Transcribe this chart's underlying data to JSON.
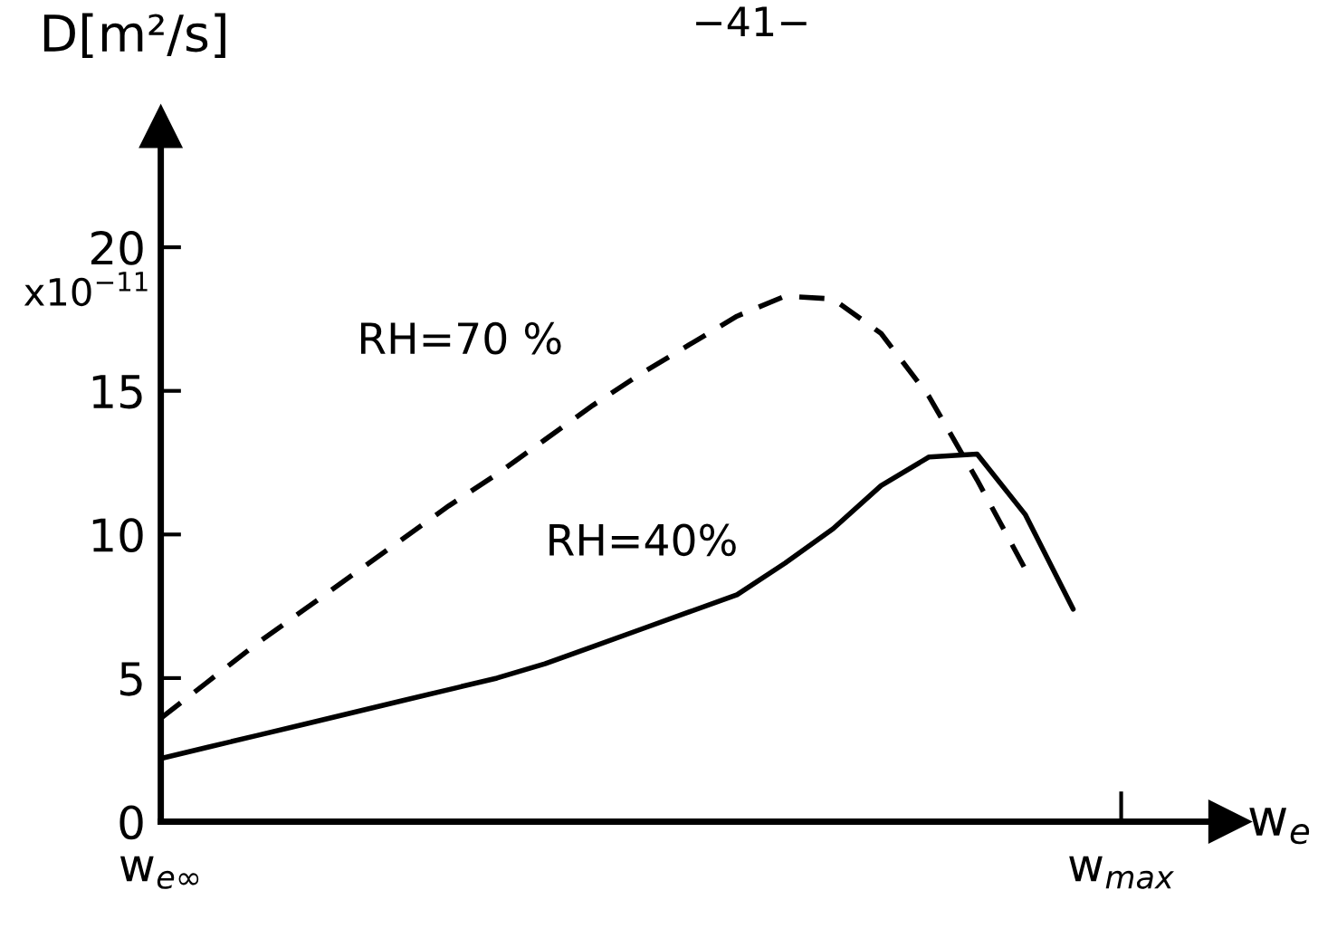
{
  "chart_data": {
    "type": "line",
    "ylabel": "D[m²/s]",
    "xlabel": "w$_{e}$",
    "annotations": [
      "−41−",
      "x10$^{−11}$"
    ],
    "categories": [
      "w$_{e∞}$",
      null,
      null,
      null,
      null,
      null,
      null,
      null,
      null,
      null,
      null,
      null,
      null,
      null,
      null,
      null,
      null,
      null,
      null,
      null,
      "w$_{max}$",
      null,
      null
    ],
    "ylim": [
      0,
      24.2
    ],
    "yticks": [
      0,
      5,
      10,
      15,
      20
    ],
    "grid": false,
    "legend": false,
    "marker": "none",
    "series": [
      {
        "name": "RH=70 %",
        "color": "#000000",
        "line_style": "dashed",
        "values": [
          3.6,
          4.9,
          6.2,
          7.4,
          8.6,
          9.8,
          11.0,
          12.1,
          13.3,
          14.5,
          15.6,
          16.6,
          17.6,
          18.3,
          18.2,
          17.0,
          14.8,
          11.9,
          8.8,
          null,
          null,
          null,
          null
        ]
      },
      {
        "name": "RH=40%",
        "color": "#000000",
        "line_style": "solid",
        "values": [
          2.2,
          2.6,
          3.0,
          3.4,
          3.8,
          4.2,
          4.6,
          5.0,
          5.5,
          6.1,
          6.7,
          7.3,
          7.9,
          9.0,
          10.2,
          11.7,
          12.7,
          12.8,
          10.7,
          7.4,
          null,
          null,
          null
        ]
      }
    ]
  }
}
